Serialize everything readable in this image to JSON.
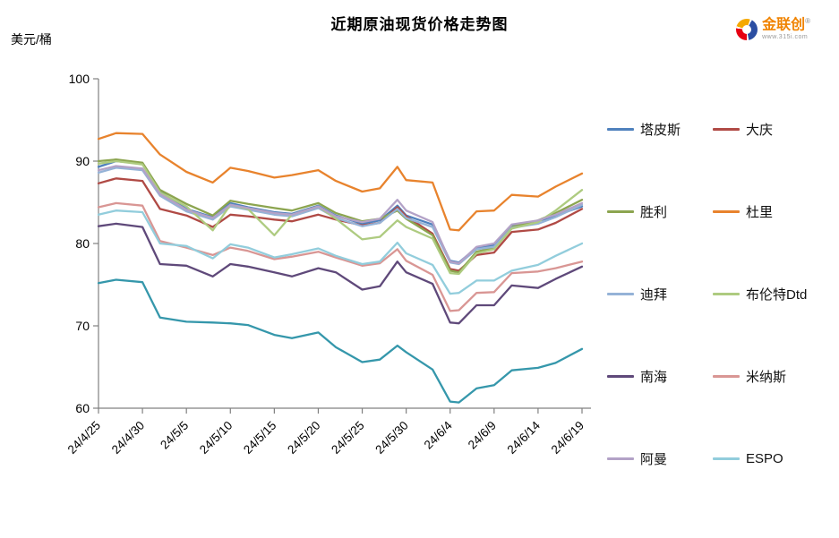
{
  "logo": {
    "brand": "金联创",
    "reg_mark": "®",
    "url_text": "www.315i.com"
  },
  "chart_data": {
    "type": "line",
    "title": "近期原油现货价格走势图",
    "y_unit": "美元/桶",
    "xlabel": "",
    "ylabel": "美元/桶",
    "ylim": [
      60,
      100
    ],
    "y_ticks": [
      100,
      90,
      80,
      70,
      60
    ],
    "grid": false,
    "legend_position": "right",
    "x_labels": [
      "24/4/25",
      "24/4/30",
      "24/5/5",
      "24/5/10",
      "24/5/15",
      "24/5/20",
      "24/5/25",
      "24/5/30",
      "24/6/4",
      "24/6/9",
      "24/6/14",
      "24/6/19"
    ],
    "x_label_interval_days": 5,
    "x_total_days": 55,
    "sample_days": [
      0,
      2,
      5,
      7,
      10,
      13,
      15,
      17,
      20,
      22,
      25,
      27,
      30,
      32,
      34,
      35,
      38,
      40,
      41,
      43,
      45,
      47,
      50,
      52,
      55
    ],
    "series": [
      {
        "label": "塔皮斯",
        "color": "#4F81BD",
        "values": [
          89.3,
          90.0,
          89.7,
          86.3,
          84.2,
          83.2,
          84.9,
          84.4,
          83.8,
          83.6,
          84.6,
          83.4,
          82.4,
          82.8,
          84.6,
          83.4,
          82.3,
          77.9,
          77.7,
          79.5,
          79.8,
          82.2,
          82.7,
          83.4,
          84.5
        ]
      },
      {
        "label": "大庆",
        "color": "#B04A45",
        "values": [
          87.3,
          87.9,
          87.6,
          84.2,
          83.4,
          82.0,
          83.5,
          83.3,
          82.9,
          82.7,
          83.5,
          82.9,
          82.2,
          82.5,
          84.4,
          83.3,
          81.2,
          76.9,
          76.7,
          78.6,
          78.9,
          81.4,
          81.7,
          82.5,
          84.2
        ]
      },
      {
        "label": "胜利",
        "color": "#8CA550",
        "values": [
          90.0,
          90.2,
          89.8,
          86.5,
          84.8,
          83.4,
          85.2,
          84.8,
          84.3,
          84.0,
          84.9,
          83.7,
          82.7,
          83.0,
          84.0,
          83.0,
          81.0,
          76.7,
          76.5,
          79.0,
          79.5,
          82.0,
          82.8,
          83.7,
          85.3
        ]
      },
      {
        "label": "杜里",
        "color": "#E8832D",
        "values": [
          92.7,
          93.4,
          93.3,
          90.8,
          88.7,
          87.4,
          89.2,
          88.8,
          88.0,
          88.3,
          88.9,
          87.6,
          86.3,
          86.7,
          89.3,
          87.7,
          87.4,
          81.7,
          81.6,
          83.9,
          84.0,
          85.9,
          85.7,
          86.9,
          88.5
        ]
      },
      {
        "label": "迪拜",
        "color": "#95B3D7",
        "values": [
          88.6,
          89.2,
          88.9,
          85.8,
          83.9,
          82.9,
          84.5,
          84.1,
          83.5,
          83.3,
          84.3,
          83.1,
          82.1,
          82.5,
          84.2,
          83.1,
          82.0,
          77.7,
          77.5,
          79.3,
          79.6,
          81.9,
          82.4,
          83.2,
          84.7
        ]
      },
      {
        "label": "布伦特Dtd",
        "color": "#AECB80",
        "values": [
          89.7,
          90.0,
          89.6,
          86.2,
          84.5,
          81.6,
          84.7,
          84.2,
          81.0,
          83.5,
          84.5,
          83.0,
          80.5,
          80.8,
          82.8,
          82.0,
          80.6,
          76.4,
          76.3,
          78.8,
          79.3,
          81.8,
          82.6,
          84.0,
          86.5
        ]
      },
      {
        "label": "南海",
        "color": "#5F497A",
        "values": [
          82.1,
          82.4,
          82.0,
          77.5,
          77.3,
          76.0,
          77.5,
          77.2,
          76.5,
          76.0,
          77.0,
          76.5,
          74.4,
          74.8,
          77.8,
          76.5,
          75.1,
          70.4,
          70.3,
          72.5,
          72.5,
          74.9,
          74.6,
          75.7,
          77.2
        ]
      },
      {
        "label": "米纳斯",
        "color": "#D99694",
        "values": [
          84.4,
          84.9,
          84.6,
          80.3,
          79.5,
          78.6,
          79.5,
          79.1,
          78.1,
          78.4,
          79.0,
          78.3,
          77.3,
          77.6,
          79.3,
          77.9,
          76.2,
          71.8,
          71.9,
          74.0,
          74.1,
          76.4,
          76.6,
          77.0,
          77.8
        ]
      },
      {
        "label": "阿曼",
        "color": "#B3A2C7",
        "values": [
          88.9,
          89.4,
          89.1,
          86.0,
          84.1,
          83.1,
          84.7,
          84.3,
          83.7,
          83.5,
          84.5,
          83.3,
          82.6,
          83.0,
          85.3,
          84.0,
          82.6,
          77.8,
          77.6,
          79.6,
          80.0,
          82.3,
          82.8,
          83.5,
          84.9
        ]
      },
      {
        "label": "ESPO",
        "color": "#92CDDC",
        "values": [
          83.5,
          84.0,
          83.8,
          80.0,
          79.7,
          78.2,
          79.9,
          79.5,
          78.3,
          78.7,
          79.4,
          78.5,
          77.5,
          77.8,
          80.1,
          78.8,
          77.4,
          73.9,
          74.0,
          75.5,
          75.5,
          76.7,
          77.4,
          78.5,
          80.0
        ]
      },
      {
        "label": "",
        "color": "#3597AB",
        "values": [
          75.2,
          75.6,
          75.3,
          71.0,
          70.5,
          70.4,
          70.3,
          70.1,
          68.9,
          68.5,
          69.2,
          67.4,
          65.6,
          65.9,
          67.6,
          66.8,
          64.7,
          60.8,
          60.7,
          62.4,
          62.8,
          64.6,
          64.9,
          65.5,
          67.2
        ]
      }
    ]
  }
}
